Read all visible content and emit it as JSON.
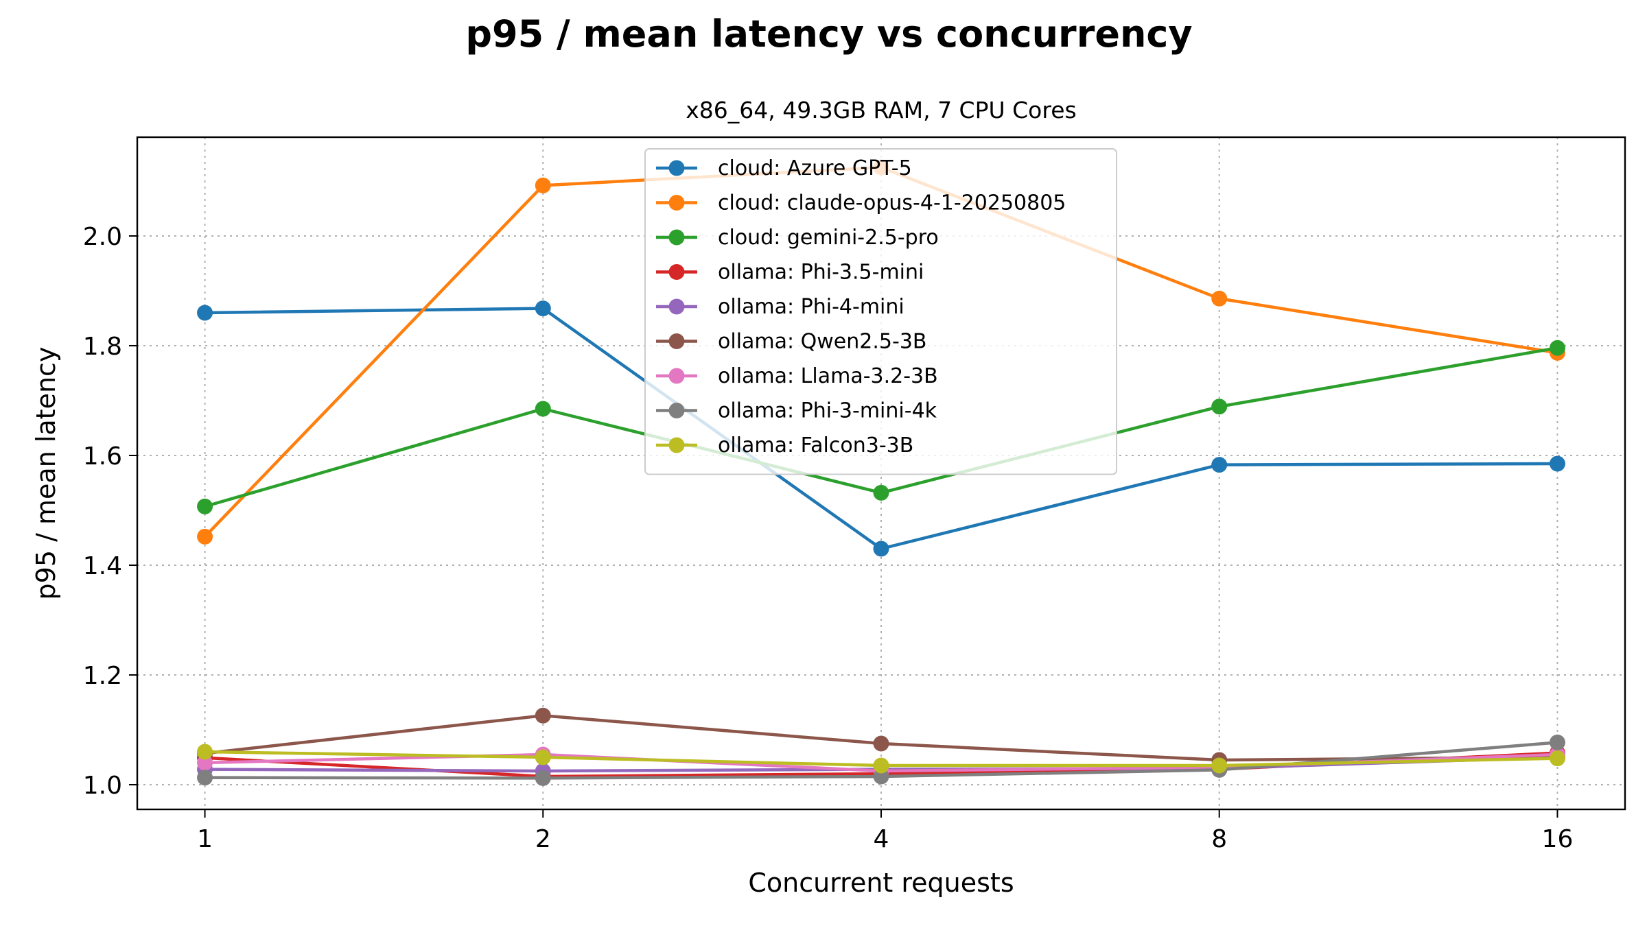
{
  "chart_data": {
    "type": "line",
    "title": "p95 / mean latency vs concurrency",
    "subtitle": "x86_64, 49.3GB RAM, 7 CPU Cores",
    "xlabel": "Concurrent requests",
    "ylabel": "p95 / mean latency",
    "x_scale": "log2",
    "x": [
      1,
      2,
      4,
      8,
      16
    ],
    "x_tick_labels": [
      "1",
      "2",
      "4",
      "8",
      "16"
    ],
    "y_ticks": [
      1.0,
      1.2,
      1.4,
      1.6,
      1.8,
      2.0
    ],
    "y_tick_labels": [
      "1.0",
      "1.2",
      "1.4",
      "1.6",
      "1.8",
      "2.0"
    ],
    "ylim": [
      0.955,
      2.18
    ],
    "grid": true,
    "legend_position": "upper-center",
    "series": [
      {
        "name": "cloud: Azure GPT-5",
        "color": "#1f77b4",
        "values": [
          1.86,
          1.868,
          1.43,
          1.583,
          1.585
        ]
      },
      {
        "name": "cloud: claude-opus-4-1-20250805",
        "color": "#ff7f0e",
        "values": [
          1.452,
          2.092,
          2.125,
          1.886,
          1.787
        ]
      },
      {
        "name": "cloud: gemini-2.5-pro",
        "color": "#2ca02c",
        "values": [
          1.507,
          1.685,
          1.532,
          1.689,
          1.796
        ]
      },
      {
        "name": "ollama: Phi-3.5-mini",
        "color": "#d62728",
        "values": [
          1.049,
          1.015,
          1.02,
          1.028,
          1.058
        ]
      },
      {
        "name": "ollama: Phi-4-mini",
        "color": "#9467bd",
        "values": [
          1.028,
          1.025,
          1.028,
          1.03,
          1.05
        ]
      },
      {
        "name": "ollama: Qwen2.5-3B",
        "color": "#8c564b",
        "values": [
          1.057,
          1.126,
          1.075,
          1.045,
          1.05
        ]
      },
      {
        "name": "ollama: Llama-3.2-3B",
        "color": "#e377c2",
        "values": [
          1.04,
          1.055,
          1.025,
          1.032,
          1.055
        ]
      },
      {
        "name": "ollama: Phi-3-mini-4k",
        "color": "#7f7f7f",
        "values": [
          1.013,
          1.012,
          1.015,
          1.027,
          1.077
        ]
      },
      {
        "name": "ollama: Falcon3-3B",
        "color": "#bcbd22",
        "values": [
          1.06,
          1.05,
          1.035,
          1.035,
          1.048
        ]
      }
    ]
  }
}
